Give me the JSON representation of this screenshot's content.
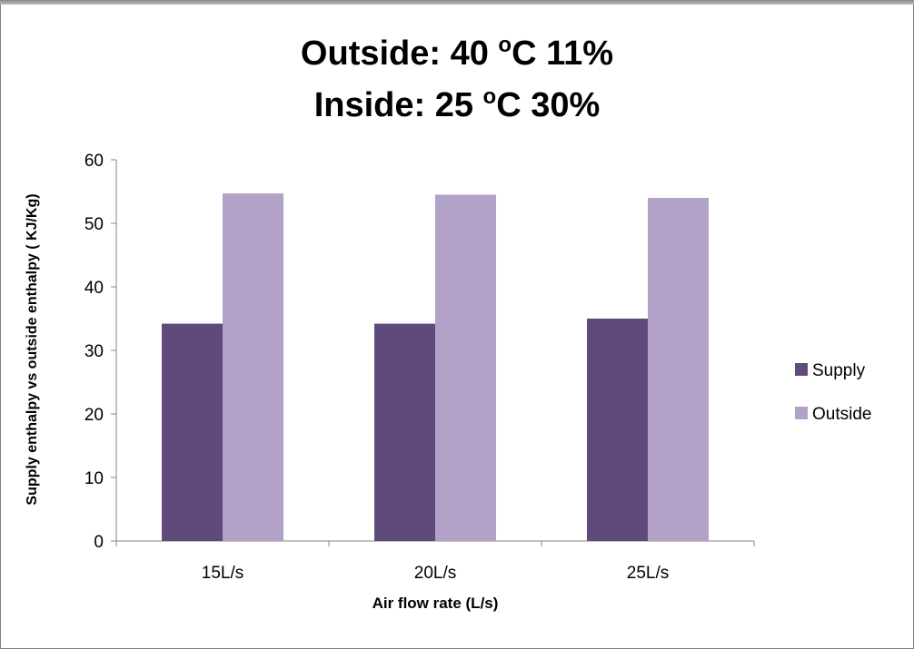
{
  "chart_data": {
    "type": "bar",
    "title_line1": {
      "prefix": "Outside: 40 ",
      "superscript": "o",
      "suffix": "C 11%"
    },
    "title_line2": {
      "prefix": "Inside: 25 ",
      "superscript": "o",
      "suffix": "C 30%"
    },
    "xlabel": "Air flow rate (L/s)",
    "ylabel": "Supply enthalpy vs outside enthalpy ( KJ/Kg)",
    "categories": [
      "15L/s",
      "20L/s",
      "25L/s"
    ],
    "series": [
      {
        "name": "Supply",
        "values": [
          34.2,
          34.2,
          35.0
        ],
        "color": "#604a7b"
      },
      {
        "name": "Outside",
        "values": [
          54.7,
          54.5,
          54.0
        ],
        "color": "#b3a2c7"
      }
    ],
    "ylim": [
      0,
      60
    ],
    "yticks": [
      0,
      10,
      20,
      30,
      40,
      50,
      60
    ],
    "grid": false,
    "legend_position": "right"
  }
}
